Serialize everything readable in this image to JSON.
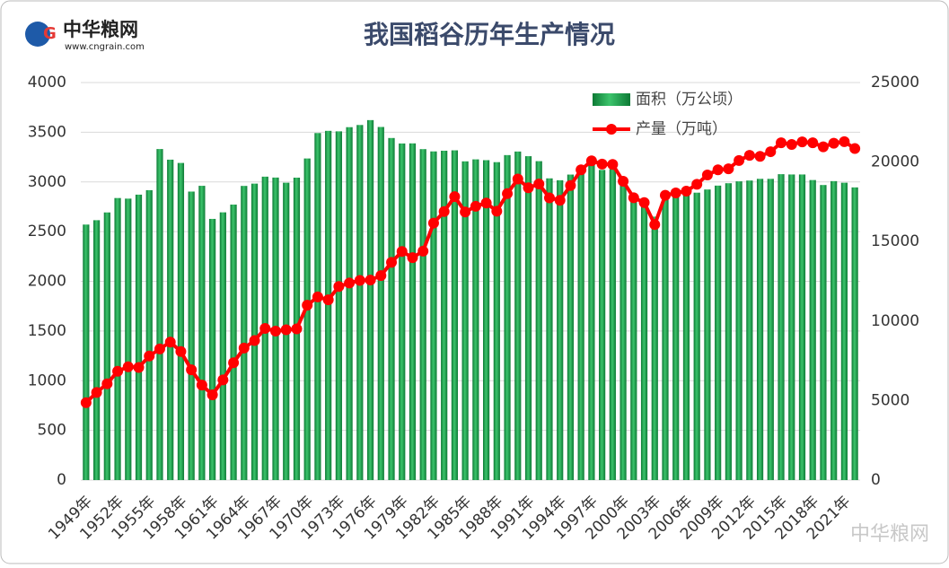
{
  "chart_data": {
    "type": "bar-line",
    "title": "我国稻谷历年生产情况",
    "logo_name": "中华粮网",
    "logo_url": "www.cngrain.com",
    "watermark": "中华粮网",
    "categories": [
      "1949年",
      null,
      null,
      "1952年",
      null,
      null,
      "1955年",
      null,
      null,
      "1958年",
      null,
      null,
      "1961年",
      null,
      null,
      "1964年",
      null,
      null,
      "1967年",
      null,
      null,
      "1970年",
      null,
      null,
      "1973年",
      null,
      null,
      "1976年",
      null,
      null,
      "1979年",
      null,
      null,
      "1982年",
      null,
      null,
      "1985年",
      null,
      null,
      "1988年",
      null,
      null,
      "1991年",
      null,
      null,
      "1994年",
      null,
      null,
      "1997年",
      null,
      null,
      "2000年",
      null,
      null,
      "2003年",
      null,
      null,
      "2006年",
      null,
      null,
      "2009年",
      null,
      null,
      "2012年",
      null,
      null,
      "2015年",
      null,
      null,
      "2018年",
      null,
      null,
      "2021年",
      null
    ],
    "series": [
      {
        "name": "面积（万公顷）",
        "type": "bar",
        "axis": "y",
        "color": "#1a9a48",
        "values": [
          2571,
          2615,
          2693,
          2838,
          2832,
          2872,
          2917,
          3331,
          3224,
          3191,
          2903,
          2961,
          2628,
          2694,
          2772,
          2960,
          2983,
          3053,
          3044,
          2992,
          3043,
          3236,
          3492,
          3514,
          3509,
          3551,
          3573,
          3622,
          3553,
          3442,
          3387,
          3388,
          3330,
          3307,
          3314,
          3318,
          3207,
          3227,
          3219,
          3199,
          3270,
          3306,
          3259,
          3209,
          3036,
          3017,
          3074,
          3141,
          3177,
          3121,
          3128,
          2996,
          2881,
          2820,
          2651,
          2838,
          2885,
          2894,
          2892,
          2924,
          2963,
          2987,
          3006,
          3014,
          3031,
          3031,
          3078,
          3075,
          3075,
          3019,
          2969,
          3008,
          2992,
          2945
        ]
      },
      {
        "name": "产量（万吨）",
        "type": "line",
        "axis": "y2",
        "color": "#ff0000",
        "values": [
          4865,
          5510,
          6056,
          6843,
          7127,
          7085,
          7803,
          8248,
          8678,
          8085,
          6937,
          5973,
          5364,
          6299,
          7377,
          8300,
          8772,
          9539,
          9369,
          9453,
          9507,
          10999,
          11521,
          11336,
          12174,
          12391,
          12556,
          12581,
          12857,
          13693,
          14375,
          13991,
          14396,
          16160,
          16887,
          17826,
          16857,
          17222,
          17426,
          16911,
          18013,
          18933,
          18381,
          18622,
          17751,
          17593,
          18523,
          19510,
          20074,
          19871,
          19849,
          18791,
          17758,
          17454,
          16066,
          17909,
          18059,
          18172,
          18603,
          19190,
          19510,
          19576,
          20100,
          20424,
          20361,
          20651,
          21214,
          21109,
          21268,
          21213,
          20961,
          21186,
          21284,
          20849
        ]
      }
    ],
    "ylim": [
      0,
      4000
    ],
    "yticks": [
      0,
      500,
      1000,
      1500,
      2000,
      2500,
      3000,
      3500,
      4000
    ],
    "y2lim": [
      0,
      25000
    ],
    "y2ticks": [
      0,
      5000,
      10000,
      15000,
      20000,
      25000
    ],
    "grid": true,
    "legend": "top-right"
  }
}
